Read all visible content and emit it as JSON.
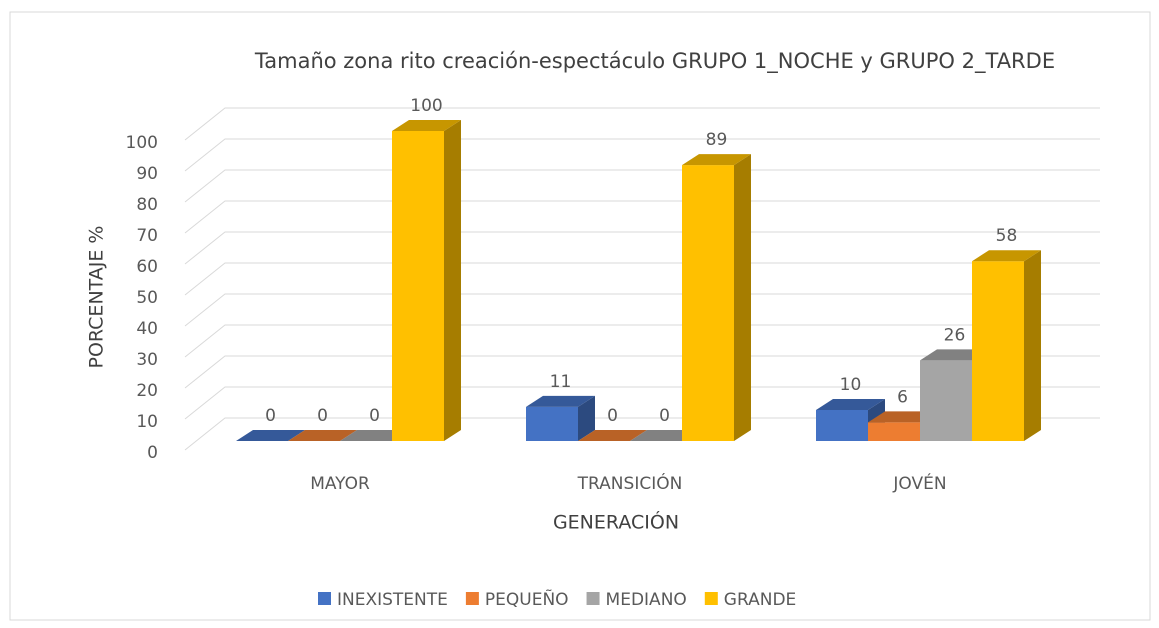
{
  "chart_data": {
    "type": "bar3d",
    "title": "Tamaño zona rito creación-espectáculo GRUPO 1_NOCHE y GRUPO 2_TARDE",
    "x_label": "GENERACIÓN",
    "y_label": "PORCENTAJE %",
    "categories": [
      "MAYOR",
      "TRANSICIÓN",
      "JOVÉN"
    ],
    "series": [
      {
        "name": "INEXISTENTE",
        "color": "#4472c4",
        "values": [
          0,
          11,
          10
        ]
      },
      {
        "name": "PEQUEÑO",
        "color": "#ed7d31",
        "values": [
          0,
          0,
          6
        ]
      },
      {
        "name": "MEDIANO",
        "color": "#a5a5a5",
        "values": [
          0,
          0,
          26
        ]
      },
      {
        "name": "GRANDE",
        "color": "#ffc000",
        "values": [
          100,
          89,
          58
        ]
      }
    ],
    "ylim": [
      0,
      100
    ],
    "yticks": [
      0,
      10,
      20,
      30,
      40,
      50,
      60,
      70,
      80,
      90,
      100
    ],
    "grid": true,
    "legend": "bottom"
  }
}
